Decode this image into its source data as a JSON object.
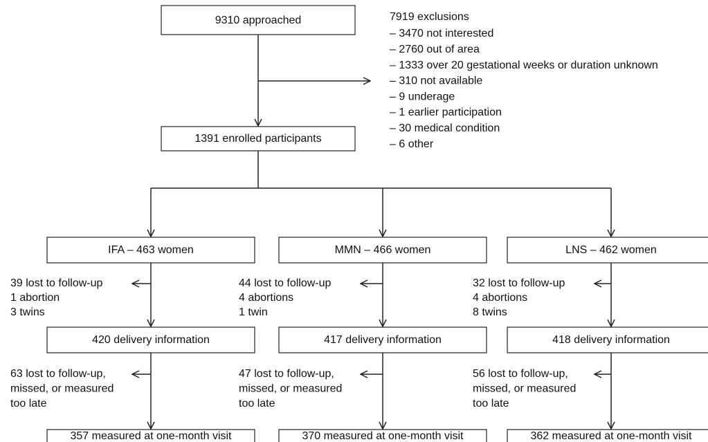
{
  "top": {
    "label": "9310 approached"
  },
  "exclusions": {
    "title": "7919 exclusions",
    "items": [
      "– 3470 not interested",
      "– 2760 out of area",
      "– 1333 over 20 gestational weeks or duration unknown",
      "– 310 not available",
      "– 9 underage",
      "– 1 earlier participation",
      "– 30 medical condition",
      "– 6 other"
    ]
  },
  "enrolled": {
    "label": "1391 enrolled participants"
  },
  "arms": [
    {
      "label": "IFA – 463 women",
      "lost": [
        "39 lost to follow-up",
        "1 abortion",
        "3 twins"
      ],
      "delivery": "420 delivery information",
      "lost2": [
        "63 lost to follow-up,",
        "missed, or measured",
        "too late"
      ],
      "final": "357 measured at one-month visit"
    },
    {
      "label": "MMN – 466 women",
      "lost": [
        "44 lost to follow-up",
        "4 abortions",
        "1 twin"
      ],
      "delivery": "417 delivery information",
      "lost2": [
        "47 lost to follow-up,",
        "missed, or measured",
        "too late"
      ],
      "final": "370 measured at one-month visit"
    },
    {
      "label": "LNS – 462 women",
      "lost": [
        "32 lost to follow-up",
        "4 abortions",
        "8 twins"
      ],
      "delivery": "418 delivery information",
      "lost2": [
        "56 lost to follow-up,",
        "missed, or measured",
        "too late"
      ],
      "final": "362 measured at one-month visit"
    }
  ]
}
